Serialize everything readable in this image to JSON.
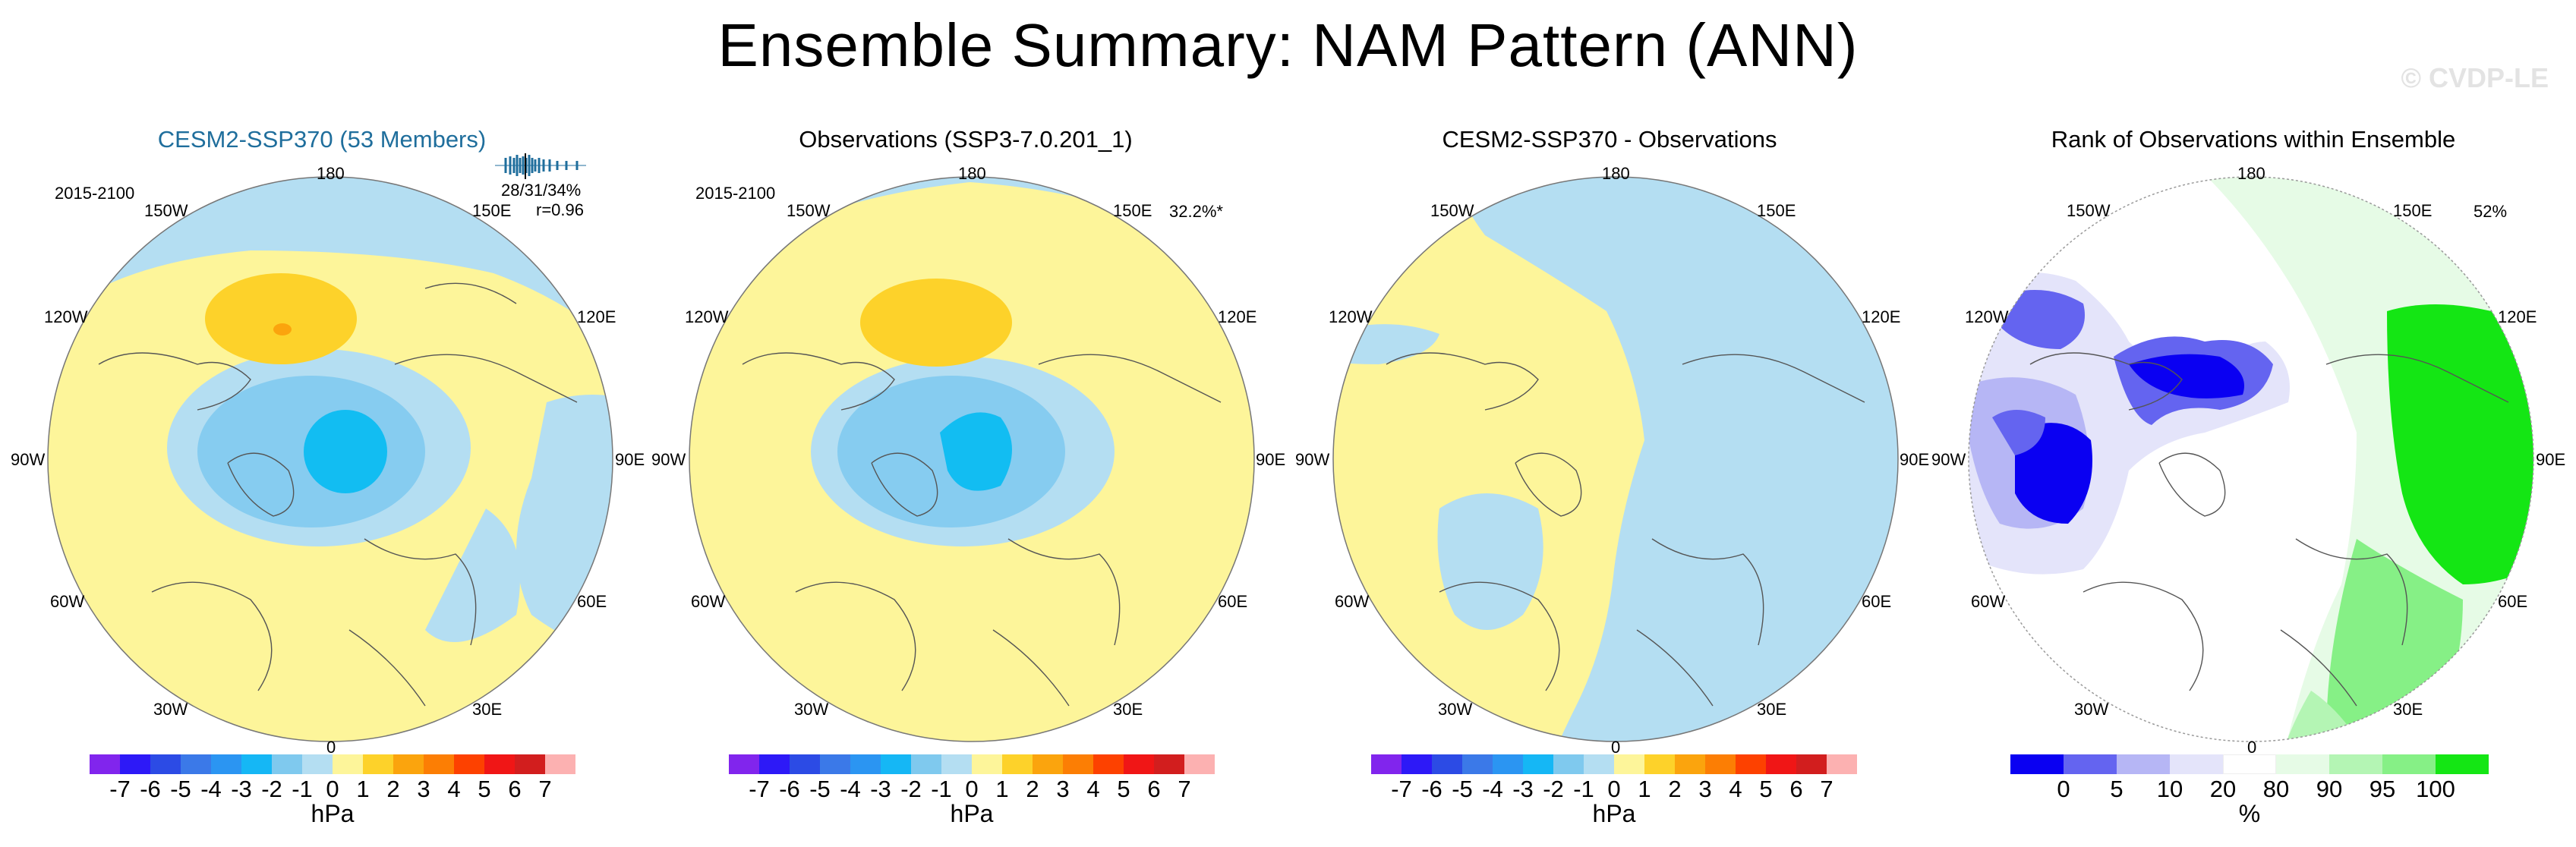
{
  "title": "Ensemble Summary: NAM Pattern (ANN)",
  "watermark": "© CVDP-LE",
  "colors": {
    "fill_low": "#fdf59a",
    "fill_ocean": "#b4def2",
    "neg_mid": "#86ccf0",
    "neg_deep": "#12bdf2",
    "pos_mid": "#fdd22a",
    "pos_deep": "#fba40d",
    "model_title": "#1f6e9c"
  },
  "panels": [
    {
      "title": "CESM2-SSP370 (53 Members)",
      "period": "2015-2100",
      "stat_line1": "28/31/34%",
      "stat_line2": "r=0.96",
      "stat_line": ""
    },
    {
      "title": "Observations (SSP3-7.0.201_1)",
      "period": "2015-2100",
      "stat_line": "32.2%*"
    },
    {
      "title": "CESM2-SSP370 - Observations",
      "period": "",
      "stat_line": ""
    },
    {
      "title": "Rank of Observations within Ensemble",
      "period": "",
      "stat_line": "52%"
    }
  ],
  "lon_labels": {
    "top": "180",
    "top_left": "150W",
    "top_right": "150E",
    "upper_left": "120W",
    "upper_right": "120E",
    "left": "90W",
    "right": "90E",
    "lower_left": "60W",
    "lower_right": "60E",
    "bottom_left": "30W",
    "bottom_right": "30E",
    "bottom": "0"
  },
  "colorbar_hpa": {
    "unit": "hPa",
    "labels": [
      "-7",
      "-6",
      "-5",
      "-4",
      "-3",
      "-2",
      "-1",
      "0",
      "1",
      "2",
      "3",
      "4",
      "5",
      "6",
      "7"
    ],
    "colors": [
      "#8125ed",
      "#2d19f7",
      "#2c4be5",
      "#3b79e8",
      "#2b95f2",
      "#15b7f5",
      "#7fc9ee",
      "#b4def2",
      "#fdf59a",
      "#fdd22a",
      "#fba40d",
      "#fc7e04",
      "#fd4100",
      "#f01616",
      "#d21e1e",
      "#fcb1b1"
    ]
  },
  "colorbar_rank": {
    "unit": "%",
    "labels": [
      "0",
      "5",
      "10",
      "20",
      "80",
      "90",
      "95",
      "100"
    ],
    "colors": [
      "#0a00f2",
      "#6464f0",
      "#b6b6f5",
      "#e4e4fa",
      "#ffffff",
      "#e6fbe6",
      "#b4f5b4",
      "#86f086",
      "#14e614"
    ]
  }
}
